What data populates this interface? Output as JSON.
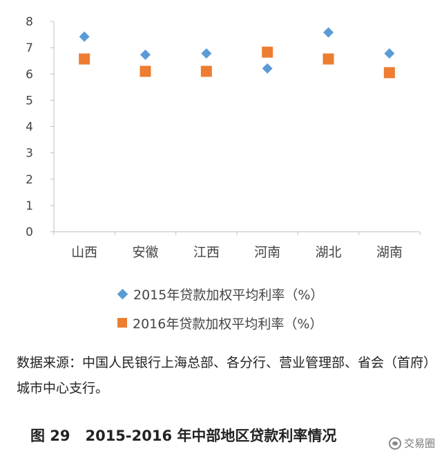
{
  "chart_data": {
    "type": "scatter",
    "categories": [
      "山西",
      "安徽",
      "江西",
      "河南",
      "湖北",
      "湖南"
    ],
    "ylim": [
      0,
      8
    ],
    "yticks": [
      0,
      1,
      2,
      3,
      4,
      5,
      6,
      7,
      8
    ],
    "series": [
      {
        "name": "2015年贷款加权平均利率（%）",
        "marker": "diamond",
        "color": "#5b9bd5",
        "values": [
          7.42,
          6.73,
          6.78,
          6.21,
          7.58,
          6.78
        ]
      },
      {
        "name": "2016年贷款加权平均利率（%）",
        "marker": "square",
        "color": "#ed7d31",
        "values": [
          6.57,
          6.1,
          6.1,
          6.83,
          6.57,
          6.05
        ]
      }
    ],
    "grid": false,
    "legend_position": "bottom"
  },
  "source_text": "数据来源：中国人民银行上海总部、各分行、营业管理部、省会（首府）城市中心支行。",
  "caption": "图 29   2015-2016 年中部地区贷款利率情况",
  "watermark": "交易圈"
}
